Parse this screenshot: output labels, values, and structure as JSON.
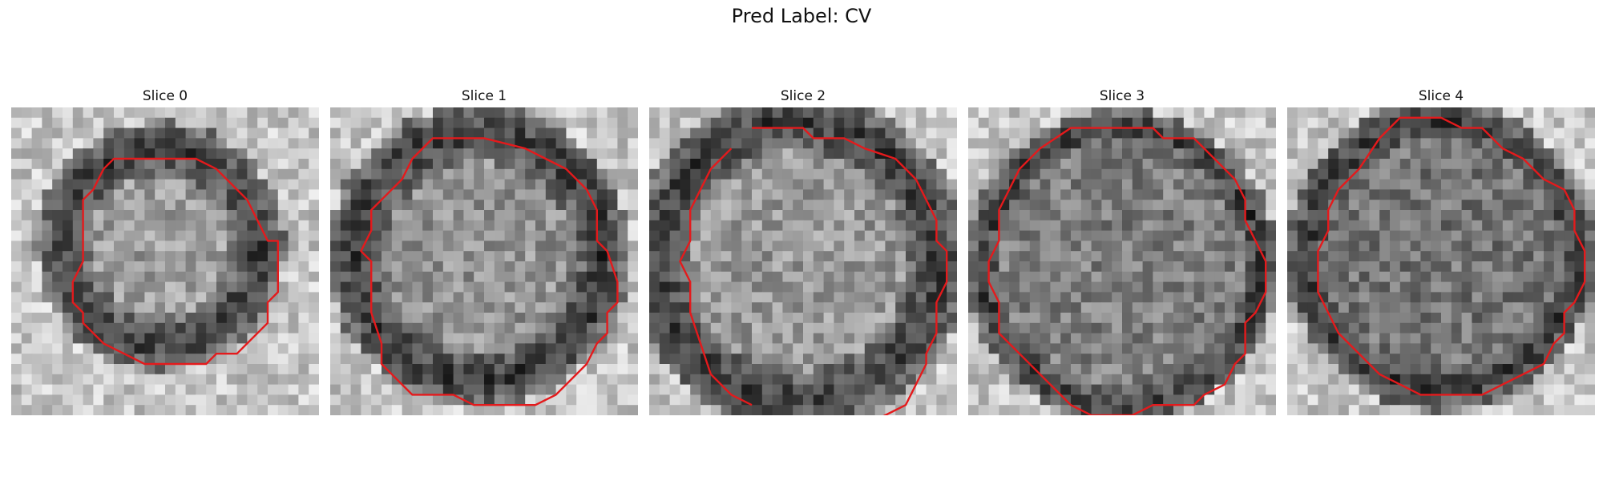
{
  "figure": {
    "title": "Pred Label: CV"
  },
  "colors": {
    "contour": "#e41a1c",
    "background": "#ffffff"
  },
  "grid_size": 30,
  "panels": [
    {
      "label": "Slice 0",
      "seed": 11,
      "center": [
        14.5,
        13.5
      ],
      "radius": 9.5,
      "ring": 2.6,
      "inner": 0.62,
      "contour": [
        [
          10,
          5
        ],
        [
          18,
          5
        ],
        [
          20,
          6
        ],
        [
          22,
          8
        ],
        [
          23,
          9
        ],
        [
          24,
          11
        ],
        [
          25,
          13
        ],
        [
          26,
          13
        ],
        [
          26,
          18
        ],
        [
          25,
          19
        ],
        [
          25,
          21
        ],
        [
          23,
          23
        ],
        [
          22,
          24
        ],
        [
          20,
          24
        ],
        [
          19,
          25
        ],
        [
          13,
          25
        ],
        [
          11,
          24
        ],
        [
          9,
          23
        ],
        [
          7,
          21
        ],
        [
          7,
          20
        ],
        [
          6,
          19
        ],
        [
          6,
          17
        ],
        [
          7,
          15
        ],
        [
          7,
          9
        ],
        [
          8,
          8
        ],
        [
          9,
          6
        ]
      ]
    },
    {
      "label": "Slice 1",
      "seed": 23,
      "center": [
        14.5,
        14.5
      ],
      "radius": 12.0,
      "ring": 2.8,
      "inner": 0.58,
      "contour": [
        [
          10,
          3
        ],
        [
          15,
          3
        ],
        [
          19,
          4
        ],
        [
          21,
          5
        ],
        [
          23,
          6
        ],
        [
          25,
          8
        ],
        [
          26,
          10
        ],
        [
          26,
          13
        ],
        [
          27,
          14
        ],
        [
          28,
          17
        ],
        [
          28,
          19
        ],
        [
          27,
          20
        ],
        [
          27,
          22
        ],
        [
          26,
          23
        ],
        [
          25,
          25
        ],
        [
          23,
          27
        ],
        [
          22,
          28
        ],
        [
          20,
          29
        ],
        [
          14,
          29
        ],
        [
          12,
          28
        ],
        [
          8,
          28
        ],
        [
          7,
          27
        ],
        [
          6,
          26
        ],
        [
          5,
          25
        ],
        [
          5,
          23
        ],
        [
          4,
          20
        ],
        [
          4,
          15
        ],
        [
          3,
          14
        ],
        [
          4,
          12
        ],
        [
          4,
          10
        ],
        [
          5,
          9
        ],
        [
          7,
          7
        ],
        [
          8,
          5
        ]
      ]
    },
    {
      "label": "Slice 2",
      "seed": 37,
      "center": [
        14.5,
        15.0
      ],
      "radius": 13.5,
      "ring": 2.9,
      "inner": 0.6,
      "contour": [
        [
          10,
          2
        ],
        [
          15,
          2
        ],
        [
          16,
          3
        ],
        [
          19,
          3
        ],
        [
          21,
          4
        ],
        [
          24,
          5
        ],
        [
          26,
          7
        ],
        [
          27,
          9
        ],
        [
          28,
          11
        ],
        [
          28,
          13
        ],
        [
          29,
          14
        ],
        [
          29,
          17
        ],
        [
          28,
          19
        ],
        [
          28,
          22
        ],
        [
          27,
          24
        ],
        [
          27,
          25
        ],
        [
          26,
          27
        ],
        [
          25,
          29
        ],
        [
          23,
          30
        ],
        [
          21,
          31
        ],
        [
          -1,
          -1
        ],
        [
          10,
          29
        ],
        [
          8,
          28
        ],
        [
          6,
          26
        ],
        [
          5,
          23
        ],
        [
          4,
          20
        ],
        [
          4,
          17
        ],
        [
          3,
          15
        ],
        [
          4,
          13
        ],
        [
          4,
          10
        ],
        [
          5,
          8
        ],
        [
          6,
          6
        ],
        [
          8,
          4
        ]
      ]
    },
    {
      "label": "Slice 3",
      "seed": 52,
      "center": [
        15.0,
        15.5
      ],
      "radius": 13.5,
      "ring": 1.8,
      "inner": 0.5,
      "contour": [
        [
          10,
          2
        ],
        [
          18,
          2
        ],
        [
          19,
          3
        ],
        [
          22,
          3
        ],
        [
          24,
          5
        ],
        [
          26,
          7
        ],
        [
          27,
          9
        ],
        [
          27,
          11
        ],
        [
          28,
          13
        ],
        [
          29,
          15
        ],
        [
          29,
          18
        ],
        [
          28,
          20
        ],
        [
          27,
          21
        ],
        [
          27,
          24
        ],
        [
          26,
          25
        ],
        [
          25,
          27
        ],
        [
          23,
          28
        ],
        [
          22,
          29
        ],
        [
          18,
          29
        ],
        [
          16,
          30
        ],
        [
          12,
          30
        ],
        [
          10,
          29
        ],
        [
          9,
          28
        ],
        [
          7,
          26
        ],
        [
          5,
          24
        ],
        [
          3,
          22
        ],
        [
          3,
          19
        ],
        [
          2,
          17
        ],
        [
          2,
          15
        ],
        [
          3,
          13
        ],
        [
          3,
          10
        ],
        [
          4,
          8
        ],
        [
          5,
          6
        ],
        [
          7,
          4
        ]
      ]
    },
    {
      "label": "Slice 4",
      "seed": 68,
      "center": [
        15.0,
        14.5
      ],
      "radius": 13.0,
      "ring": 2.2,
      "inner": 0.46,
      "contour": [
        [
          11,
          1
        ],
        [
          15,
          1
        ],
        [
          17,
          2
        ],
        [
          19,
          2
        ],
        [
          21,
          4
        ],
        [
          23,
          5
        ],
        [
          25,
          7
        ],
        [
          27,
          8
        ],
        [
          28,
          10
        ],
        [
          28,
          12
        ],
        [
          29,
          14
        ],
        [
          29,
          17
        ],
        [
          28,
          19
        ],
        [
          27,
          20
        ],
        [
          27,
          22
        ],
        [
          26,
          23
        ],
        [
          25,
          25
        ],
        [
          23,
          26
        ],
        [
          21,
          27
        ],
        [
          19,
          28
        ],
        [
          13,
          28
        ],
        [
          11,
          27
        ],
        [
          9,
          26
        ],
        [
          7,
          24
        ],
        [
          5,
          22
        ],
        [
          4,
          20
        ],
        [
          3,
          18
        ],
        [
          3,
          14
        ],
        [
          4,
          12
        ],
        [
          4,
          10
        ],
        [
          5,
          8
        ],
        [
          7,
          6
        ],
        [
          9,
          3
        ]
      ]
    }
  ]
}
